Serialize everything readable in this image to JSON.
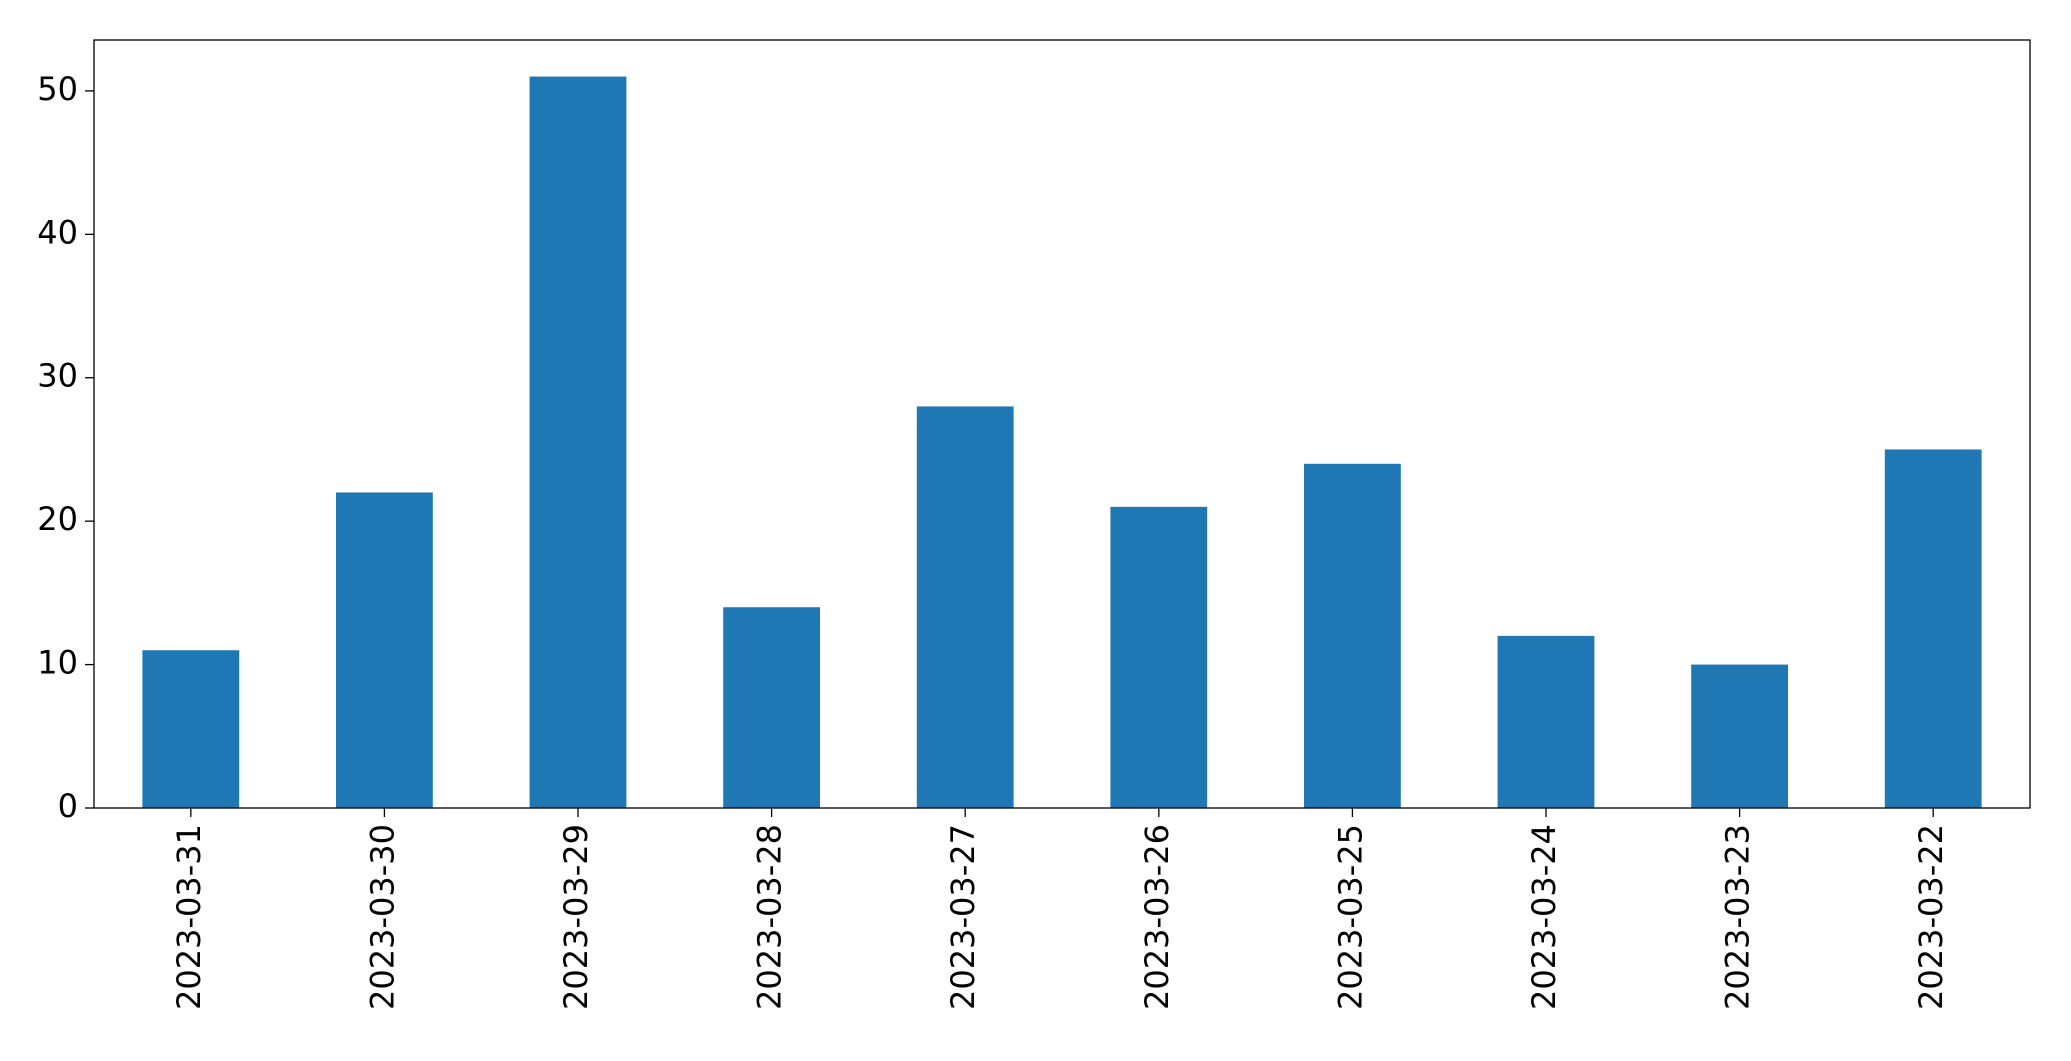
{
  "chart_data": {
    "type": "bar",
    "categories": [
      "2023-03-31",
      "2023-03-30",
      "2023-03-29",
      "2023-03-28",
      "2023-03-27",
      "2023-03-26",
      "2023-03-25",
      "2023-03-24",
      "2023-03-23",
      "2023-03-22"
    ],
    "values": [
      11,
      22,
      51,
      14,
      28,
      21,
      24,
      12,
      10,
      25
    ],
    "color": "#1f77b4",
    "ylim": [
      0,
      53.55
    ],
    "yticks": [
      0,
      10,
      20,
      30,
      40,
      50
    ],
    "grid": false
  }
}
